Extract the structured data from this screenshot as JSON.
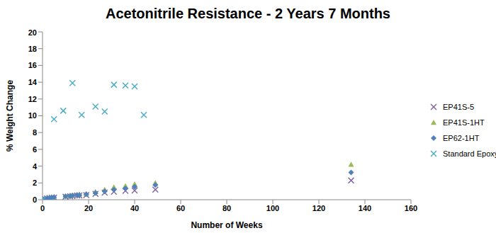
{
  "chart_data": {
    "type": "scatter",
    "title": "Acetonitrile Resistance - 2 Years 7 Months",
    "x_label": "Number of Weeks",
    "y_label": "% Weight Change",
    "xlim": [
      0,
      160
    ],
    "xticks": [
      0,
      20,
      40,
      60,
      80,
      100,
      120,
      140,
      160
    ],
    "ylim": [
      0,
      20
    ],
    "yticks": [
      0,
      2,
      4,
      6,
      8,
      10,
      12,
      14,
      16,
      18,
      20
    ],
    "grid": false,
    "legend": "right",
    "series": [
      {
        "name": "EP41S-5",
        "color": "#8064A2",
        "marker": "x",
        "x": [
          0,
          1,
          2,
          3,
          4,
          5,
          10,
          12,
          13,
          15,
          16,
          19,
          23,
          27,
          31,
          36,
          40,
          49,
          134
        ],
        "values": [
          0,
          0.1,
          0.15,
          0.2,
          0.25,
          0.25,
          0.35,
          0.4,
          0.45,
          0.5,
          0.5,
          0.55,
          0.7,
          0.85,
          0.95,
          1.05,
          1.1,
          1.2,
          2.3
        ]
      },
      {
        "name": "EP41S-1HT",
        "color": "#9BBB59",
        "marker": "triangle",
        "x": [
          0,
          1,
          2,
          3,
          4,
          5,
          10,
          12,
          13,
          15,
          16,
          19,
          23,
          27,
          31,
          36,
          40,
          49,
          134
        ],
        "values": [
          0,
          0.1,
          0.2,
          0.25,
          0.3,
          0.35,
          0.45,
          0.5,
          0.55,
          0.6,
          0.65,
          0.7,
          0.95,
          1.2,
          1.5,
          1.65,
          1.85,
          2.0,
          4.2
        ]
      },
      {
        "name": "EP62-1HT",
        "color": "#4F81BD",
        "marker": "diamond",
        "x": [
          0,
          1,
          2,
          3,
          4,
          5,
          10,
          12,
          13,
          15,
          16,
          19,
          23,
          27,
          31,
          36,
          40,
          49,
          134
        ],
        "values": [
          0,
          0.1,
          0.15,
          0.2,
          0.25,
          0.3,
          0.4,
          0.45,
          0.5,
          0.55,
          0.55,
          0.65,
          0.8,
          1.0,
          1.2,
          1.35,
          1.55,
          1.75,
          3.25
        ]
      },
      {
        "name": "Standard Epoxy",
        "color": "#4BACC6",
        "marker": "x",
        "x": [
          0,
          5,
          9,
          13,
          17,
          23,
          27,
          31,
          36,
          40,
          44
        ],
        "values": [
          0,
          9.6,
          10.6,
          13.9,
          10.1,
          11.1,
          10.5,
          13.7,
          13.6,
          13.5,
          10.1
        ]
      }
    ]
  }
}
